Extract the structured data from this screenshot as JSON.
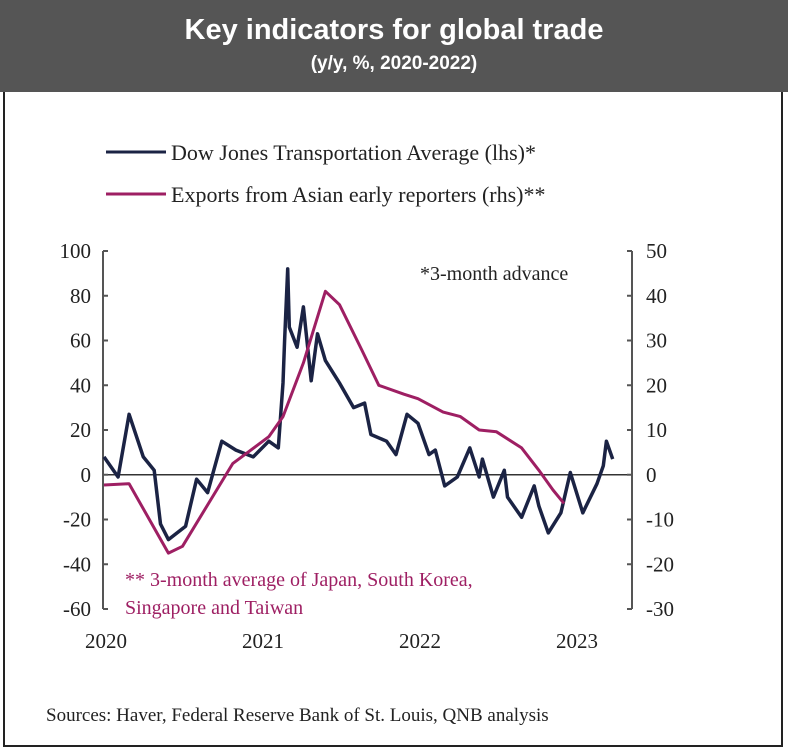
{
  "header": {
    "title": "Key indicators for global trade",
    "subtitle": "(y/y, %, 2020-2022)"
  },
  "sources": "Sources: Haver, Federal Reserve Bank of St. Louis, QNB analysis",
  "chart_data": {
    "type": "line",
    "legend_position": "top",
    "grid": false,
    "x_ticks": [
      "2020",
      "2021",
      "2022",
      "2023"
    ],
    "xlim": [
      2020,
      2023.36
    ],
    "y_left": {
      "ticks": [
        100,
        80,
        60,
        40,
        20,
        0,
        -20,
        -40,
        -60
      ],
      "lim": [
        -60,
        100
      ]
    },
    "y_right": {
      "ticks": [
        50,
        40,
        30,
        20,
        10,
        0,
        -10,
        -20,
        -30
      ],
      "lim": [
        -30,
        50
      ]
    },
    "annotations": [
      "*3-month advance",
      "** 3-month average of Japan, South Korea,",
      "Singapore and Taiwan"
    ],
    "series": [
      {
        "name": "Dow Jones Transportation Average (lhs)*",
        "axis": "left",
        "color": "#1b2344",
        "x": [
          2020.0,
          2020.09,
          2020.16,
          2020.25,
          2020.32,
          2020.36,
          2020.41,
          2020.52,
          2020.59,
          2020.66,
          2020.75,
          2020.84,
          2020.95,
          2021.05,
          2021.11,
          2021.14,
          2021.15,
          2021.17,
          2021.18,
          2021.23,
          2021.27,
          2021.32,
          2021.36,
          2021.41,
          2021.5,
          2021.59,
          2021.66,
          2021.7,
          2021.8,
          2021.86,
          2021.93,
          2022.0,
          2022.07,
          2022.11,
          2022.17,
          2022.25,
          2022.33,
          2022.39,
          2022.41,
          2022.48,
          2022.55,
          2022.57,
          2022.66,
          2022.74,
          2022.77,
          2022.83,
          2022.91,
          2022.97,
          2023.05,
          2023.14,
          2023.18,
          2023.2,
          2023.24
        ],
        "y": [
          8,
          -1,
          27,
          8,
          2,
          -22,
          -29,
          -23,
          -2,
          -8,
          15,
          11,
          8,
          15,
          12,
          41,
          60,
          92,
          66,
          57,
          75,
          42,
          63,
          51,
          41,
          30,
          32,
          18,
          15,
          9,
          27,
          23,
          9,
          11,
          -5,
          -1,
          12,
          -1,
          7,
          -10,
          2,
          -10,
          -19,
          -5,
          -14,
          -26,
          -17,
          1,
          -17,
          -4,
          4,
          15,
          7
        ]
      },
      {
        "name": "Exports from Asian early reporters (rhs)**",
        "axis": "right",
        "color": "#9e1f63",
        "x": [
          2020.0,
          2020.16,
          2020.41,
          2020.5,
          2020.82,
          2021.05,
          2021.14,
          2021.27,
          2021.41,
          2021.5,
          2021.64,
          2021.75,
          2021.91,
          2022.0,
          2022.16,
          2022.27,
          2022.39,
          2022.5,
          2022.66,
          2022.77,
          2022.86,
          2022.93
        ],
        "y": [
          -2.3,
          -2,
          -17.5,
          -16,
          2.5,
          8.5,
          13,
          25,
          41,
          38,
          28,
          20,
          18,
          17,
          14,
          13,
          10,
          9.6,
          6,
          1,
          -3.4,
          -6.4
        ]
      }
    ]
  }
}
